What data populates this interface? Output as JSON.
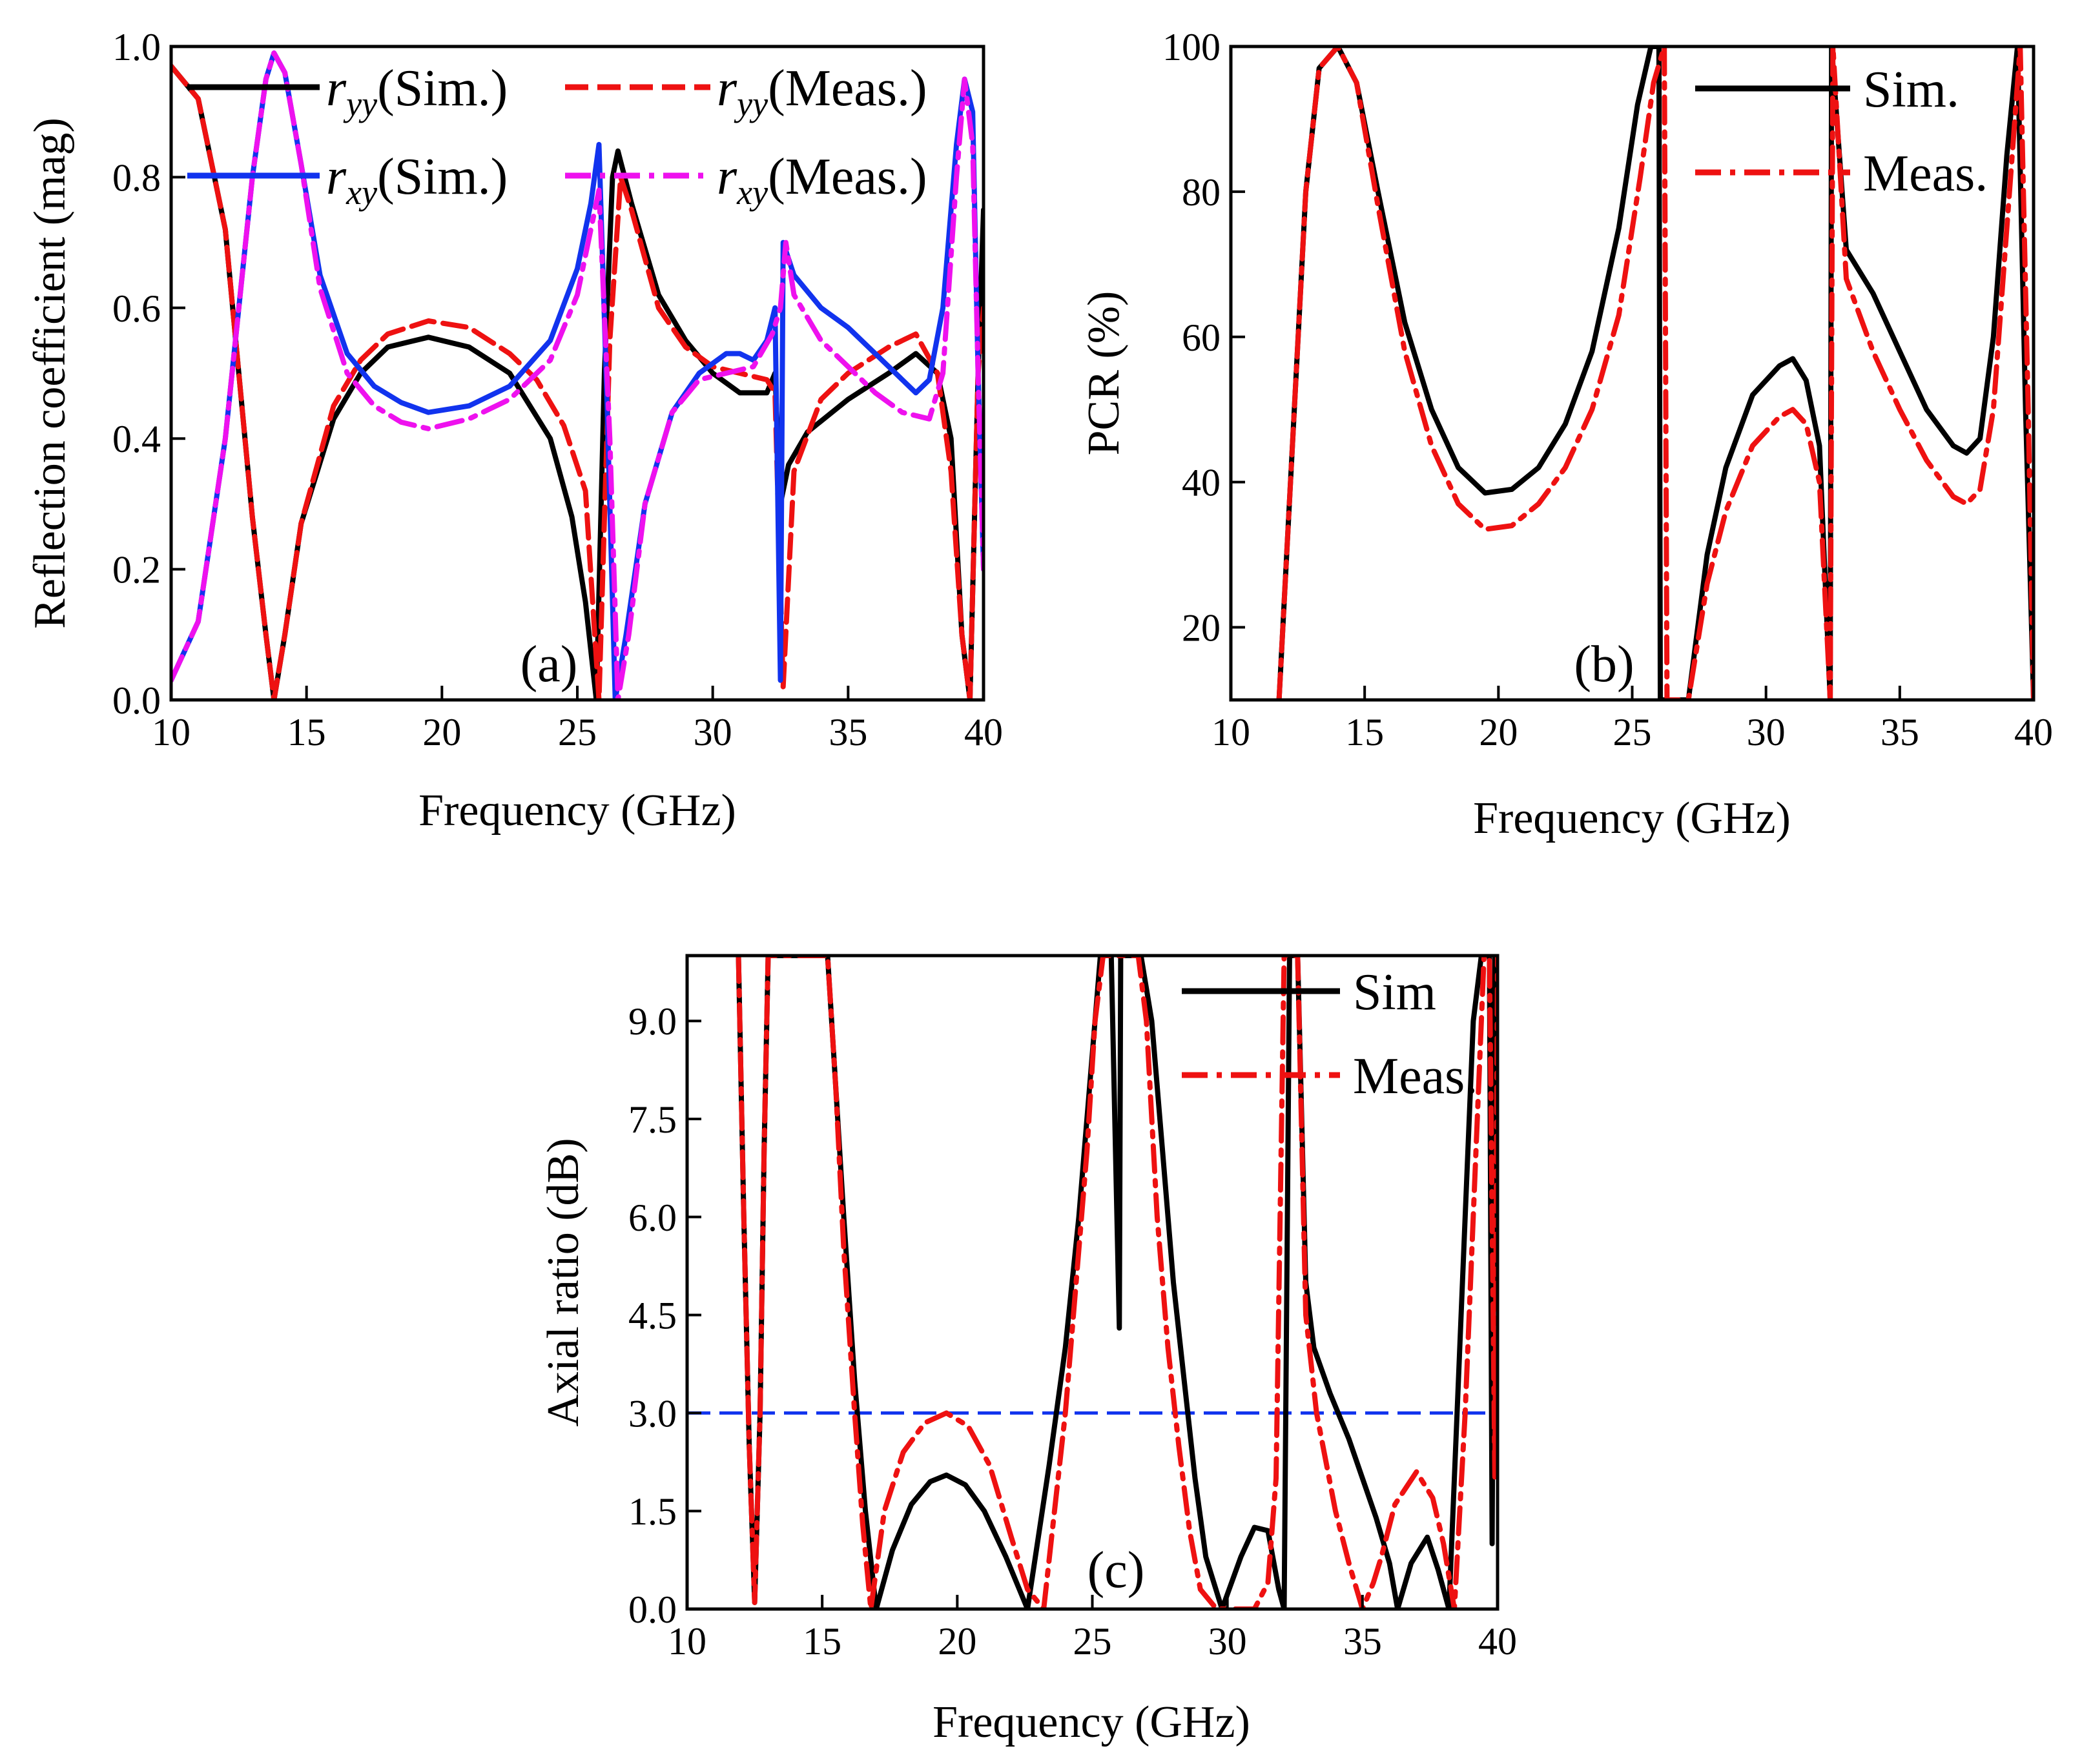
{
  "chart_data": [
    {
      "id": "a",
      "type": "line",
      "panel_label": "(a)",
      "xlabel": "Frequency (GHz)",
      "ylabel": "Reflection coefficient (mag)",
      "xlim": [
        10,
        40
      ],
      "ylim": [
        0,
        1
      ],
      "xticks": [
        10,
        15,
        20,
        25,
        30,
        35,
        40
      ],
      "xtick_labels": [
        "10",
        "15",
        "20",
        "25",
        "30",
        "35",
        "40"
      ],
      "yticks": [
        0,
        0.2,
        0.4,
        0.6,
        0.8,
        1.0
      ],
      "ytick_labels": [
        "0.0",
        "0.2",
        "0.4",
        "0.6",
        "0.8",
        "1.0"
      ],
      "legend_position": "top",
      "series": [
        {
          "name": "r_yy(Sim.)",
          "legend_sym": "r",
          "legend_sub": "yy",
          "legend_rest": "(Sim.)",
          "color": "#000000",
          "dash": "solid",
          "x": [
            10,
            11,
            12,
            12.5,
            13,
            13.5,
            13.8,
            14.2,
            14.8,
            16,
            17,
            18,
            19.5,
            21,
            22.5,
            24,
            24.8,
            25.3,
            25.7,
            26,
            26.3,
            26.5,
            27,
            28,
            29,
            30,
            31,
            32,
            32.3,
            32.5,
            32.8,
            33.5,
            35,
            36.5,
            37.5,
            38.3,
            38.8,
            39.2,
            39.5,
            39.8,
            40
          ],
          "y": [
            0.97,
            0.92,
            0.72,
            0.5,
            0.28,
            0.1,
            0.0,
            0.1,
            0.27,
            0.43,
            0.5,
            0.54,
            0.555,
            0.54,
            0.5,
            0.4,
            0.28,
            0.15,
            0.0,
            0.5,
            0.8,
            0.84,
            0.76,
            0.62,
            0.55,
            0.5,
            0.47,
            0.47,
            0.5,
            0.3,
            0.36,
            0.41,
            0.46,
            0.5,
            0.53,
            0.5,
            0.4,
            0.1,
            0.0,
            0.5,
            0.75
          ]
        },
        {
          "name": "r_yy(Meas.)",
          "legend_sym": "r",
          "legend_sub": "yy",
          "legend_rest": "(Meas.)",
          "color": "#ee1111",
          "dash": "dash",
          "x": [
            10,
            11,
            12,
            12.5,
            13,
            13.5,
            13.8,
            14.2,
            14.8,
            16,
            17,
            18,
            19.5,
            21,
            22.5,
            23.5,
            24.5,
            25.3,
            25.8,
            26.2,
            26.6,
            27,
            28,
            29,
            30,
            31,
            32,
            32.3,
            32.6,
            33,
            34,
            35,
            36.5,
            37.5,
            38.3,
            38.8,
            39.2,
            39.5,
            39.8,
            40
          ],
          "y": [
            0.97,
            0.92,
            0.72,
            0.5,
            0.28,
            0.1,
            0.0,
            0.1,
            0.27,
            0.45,
            0.52,
            0.56,
            0.58,
            0.57,
            0.53,
            0.49,
            0.42,
            0.32,
            0.0,
            0.55,
            0.8,
            0.75,
            0.6,
            0.54,
            0.51,
            0.5,
            0.49,
            0.47,
            0.02,
            0.35,
            0.46,
            0.5,
            0.54,
            0.56,
            0.5,
            0.35,
            0.1,
            0.0,
            0.5,
            0.6
          ]
        },
        {
          "name": "r_xy(Sim.)",
          "legend_sym": "r",
          "legend_sub": "xy",
          "legend_rest": "(Sim.)",
          "color": "#1133ee",
          "dash": "solid",
          "x": [
            10,
            11,
            12,
            12.5,
            13,
            13.5,
            13.8,
            14.2,
            14.8,
            15.5,
            16.5,
            17.5,
            18.5,
            19.5,
            21,
            22.5,
            24,
            25,
            25.5,
            25.8,
            26.1,
            26.4,
            26.8,
            27.5,
            28.5,
            29.5,
            30.5,
            31,
            31.5,
            32,
            32.3,
            32.5,
            32.6,
            33,
            34,
            35,
            36,
            37,
            37.5,
            38,
            38.5,
            39,
            39.3,
            39.6,
            39.8,
            40
          ],
          "y": [
            0.03,
            0.12,
            0.4,
            0.6,
            0.8,
            0.95,
            0.99,
            0.96,
            0.82,
            0.65,
            0.53,
            0.48,
            0.455,
            0.44,
            0.45,
            0.48,
            0.55,
            0.66,
            0.76,
            0.85,
            0.45,
            0.0,
            0.1,
            0.3,
            0.44,
            0.5,
            0.53,
            0.53,
            0.52,
            0.55,
            0.6,
            0.03,
            0.7,
            0.65,
            0.6,
            0.57,
            0.53,
            0.49,
            0.47,
            0.49,
            0.6,
            0.85,
            0.95,
            0.9,
            0.5,
            0.2
          ]
        },
        {
          "name": "r_xy(Meas.)",
          "legend_sym": "r",
          "legend_sub": "xy",
          "legend_rest": "(Meas.)",
          "color": "#ee11ee",
          "dash": "dashdot",
          "x": [
            10,
            11,
            12,
            12.5,
            13,
            13.5,
            13.8,
            14.2,
            14.8,
            15.5,
            16.5,
            17.5,
            18.5,
            19.5,
            21,
            22.5,
            24,
            25,
            25.8,
            26.2,
            26.5,
            26.9,
            27.5,
            28.5,
            29.5,
            30.5,
            31.5,
            32.2,
            32.5,
            32.7,
            33,
            34,
            35,
            36,
            37,
            38,
            38.5,
            39,
            39.3,
            39.6,
            39.8,
            40
          ],
          "y": [
            0.03,
            0.12,
            0.4,
            0.6,
            0.8,
            0.95,
            0.99,
            0.96,
            0.82,
            0.63,
            0.5,
            0.45,
            0.425,
            0.415,
            0.43,
            0.46,
            0.52,
            0.62,
            0.78,
            0.4,
            0.0,
            0.1,
            0.3,
            0.44,
            0.49,
            0.5,
            0.51,
            0.56,
            0.6,
            0.7,
            0.62,
            0.55,
            0.51,
            0.47,
            0.44,
            0.43,
            0.5,
            0.8,
            0.95,
            0.85,
            0.5,
            0.2
          ]
        }
      ]
    },
    {
      "id": "b",
      "type": "line",
      "panel_label": "(b)",
      "xlabel": "Frequency (GHz)",
      "ylabel": "PCR (%)",
      "xlim": [
        10,
        40
      ],
      "ylim": [
        10,
        100
      ],
      "xticks": [
        10,
        15,
        20,
        25,
        30,
        35,
        40
      ],
      "xtick_labels": [
        "10",
        "15",
        "20",
        "25",
        "30",
        "35",
        "40"
      ],
      "yticks": [
        20,
        40,
        60,
        80,
        100
      ],
      "ytick_labels": [
        "20",
        "40",
        "60",
        "80",
        "100"
      ],
      "legend_position": "top-right",
      "series": [
        {
          "name": "Sim.",
          "color": "#000000",
          "dash": "solid",
          "x": [
            11.8,
            12.3,
            12.8,
            13.3,
            14,
            14.7,
            15.5,
            16.5,
            17.5,
            18.5,
            19.5,
            20.5,
            21.5,
            22.5,
            23.5,
            24.5,
            25.2,
            25.7,
            26,
            26.05,
            27.1,
            27.8,
            28.5,
            29.5,
            30.5,
            31,
            31.5,
            32,
            32.4,
            32.45,
            33,
            34,
            35,
            36,
            37,
            37.5,
            38,
            38.5,
            39,
            39.4,
            39.7,
            40
          ],
          "y": [
            10,
            45,
            80,
            97,
            100,
            95,
            80,
            62,
            50,
            42,
            38.5,
            39,
            42,
            48,
            58,
            75,
            92,
            100,
            100,
            10,
            10,
            30,
            42,
            52,
            56,
            57,
            54,
            45,
            10,
            100,
            72,
            66,
            58,
            50,
            45,
            44,
            46,
            60,
            85,
            100,
            50,
            10
          ]
        },
        {
          "name": "Meas.",
          "color": "#ee1111",
          "dash": "dashdot",
          "x": [
            11.8,
            12.3,
            12.8,
            13.3,
            14,
            14.7,
            15.5,
            16.5,
            17.5,
            18.5,
            19.5,
            20.5,
            21.5,
            22.5,
            23.5,
            24.5,
            25.3,
            25.8,
            26.2,
            26.3,
            27.1,
            27.8,
            28.5,
            29.5,
            30.5,
            31,
            31.5,
            32,
            32.4,
            32.5,
            33,
            34,
            35,
            36,
            37,
            37.5,
            38,
            38.5,
            39,
            39.5,
            39.8,
            40
          ],
          "y": [
            10,
            45,
            80,
            97,
            100,
            95,
            78,
            58,
            45,
            37,
            33.5,
            34,
            37,
            42,
            50,
            63,
            82,
            95,
            100,
            10,
            10,
            26,
            36,
            45,
            49,
            50,
            48,
            40,
            10,
            100,
            68,
            58,
            50,
            43,
            38,
            37,
            39,
            50,
            75,
            100,
            50,
            10
          ]
        }
      ]
    },
    {
      "id": "c",
      "type": "line",
      "panel_label": "(c)",
      "xlabel": "Frequency (GHz)",
      "ylabel": "Axial ratio (dB)",
      "xlim": [
        10,
        40
      ],
      "ylim": [
        0,
        10
      ],
      "xticks": [
        10,
        15,
        20,
        25,
        30,
        35,
        40
      ],
      "xtick_labels": [
        "10",
        "15",
        "20",
        "25",
        "30",
        "35",
        "40"
      ],
      "yticks": [
        0,
        1.5,
        3.0,
        4.5,
        6.0,
        7.5,
        9.0
      ],
      "ytick_labels": [
        "0.0",
        "1.5",
        "3.0",
        "4.5",
        "6.0",
        "7.5",
        "9.0"
      ],
      "reference_line": {
        "y": 3.0,
        "color": "#1133ee",
        "dash": "dash"
      },
      "legend_position": "top-right",
      "series": [
        {
          "name": "Sim",
          "color": "#000000",
          "dash": "solid",
          "x": [
            11.9,
            12.1,
            12.3,
            12.5,
            12.7,
            12.85,
            13,
            15.2,
            15.5,
            15.8,
            16.2,
            16.6,
            17,
            17.6,
            18.3,
            19,
            19.6,
            20.3,
            21,
            21.8,
            22.6,
            23.4,
            24,
            24.5,
            24.9,
            25.3,
            25.6,
            25.7,
            26,
            26.05,
            26.1,
            26.2,
            26.6,
            26.8,
            27.2,
            27.6,
            28,
            28.4,
            28.8,
            29.2,
            29.8,
            30.5,
            31,
            31.5,
            31.9,
            32.1,
            32.3,
            32.6,
            32.9,
            33.2,
            33.8,
            34.5,
            35,
            35.5,
            36,
            36.3,
            36.8,
            37.4,
            37.8,
            38.2,
            38.5,
            38.8,
            39.1,
            39.4,
            39.7,
            39.8,
            39.9,
            40
          ],
          "y": [
            10,
            6,
            2.5,
            0.1,
            3,
            7,
            10,
            10,
            8,
            6,
            3.5,
            1.5,
            0.0,
            0.9,
            1.6,
            1.95,
            2.05,
            1.9,
            1.5,
            0.8,
            0.0,
            2.2,
            4,
            6,
            8,
            10,
            10,
            10,
            4.3,
            10,
            10,
            10,
            10,
            10,
            9,
            7,
            5,
            3.5,
            2,
            0.8,
            0.0,
            0.8,
            1.25,
            1.2,
            0.3,
            0.0,
            10,
            10,
            5,
            4,
            3.3,
            2.6,
            2,
            1.4,
            0.7,
            0.0,
            0.7,
            1.1,
            0.6,
            0.0,
            3,
            6,
            9,
            10,
            10,
            1,
            10,
            10
          ]
        },
        {
          "name": "Meas.",
          "color": "#ee1111",
          "dash": "dashdot",
          "x": [
            11.9,
            12.1,
            12.3,
            12.5,
            12.7,
            12.85,
            13,
            15.2,
            15.5,
            15.8,
            16.2,
            16.5,
            16.8,
            17.3,
            18,
            18.8,
            19.6,
            20.4,
            21.2,
            22,
            22.6,
            23.2,
            23.6,
            24,
            24.4,
            24.8,
            25.1,
            25.4,
            25.7,
            26.7,
            27,
            27.4,
            27.8,
            28.2,
            28.6,
            29,
            29.6,
            30.3,
            31,
            31.5,
            31.8,
            32.1,
            32.3,
            32.6,
            32.9,
            33.3,
            34,
            34.5,
            35,
            35.4,
            35.7,
            36.2,
            37,
            37.6,
            38,
            38.4,
            38.8,
            39.2,
            39.5,
            39.7,
            39.9,
            40
          ],
          "y": [
            10,
            6,
            2.5,
            0.1,
            3,
            7,
            10,
            10,
            8,
            5.5,
            3,
            1.3,
            0.0,
            1.5,
            2.4,
            2.85,
            3.0,
            2.8,
            2.2,
            1.1,
            0.3,
            0.0,
            1.5,
            3,
            5,
            7,
            9,
            10,
            10,
            10,
            9,
            6,
            4,
            2.5,
            1.2,
            0.3,
            0.0,
            0.0,
            0.0,
            0.4,
            2,
            10,
            10,
            10,
            4.5,
            3,
            1.5,
            0.7,
            0.0,
            0.4,
            0.8,
            1.6,
            2.1,
            1.7,
            1,
            0.0,
            3,
            7,
            10,
            10,
            2,
            10
          ]
        }
      ]
    }
  ]
}
